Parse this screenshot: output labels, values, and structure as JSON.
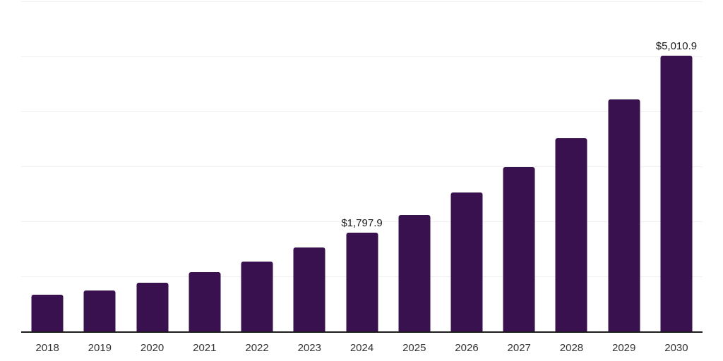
{
  "chart_data": {
    "type": "bar",
    "categories": [
      "2018",
      "2019",
      "2020",
      "2021",
      "2022",
      "2023",
      "2024",
      "2025",
      "2026",
      "2027",
      "2028",
      "2029",
      "2030"
    ],
    "values": [
      665,
      750,
      880,
      1080,
      1265,
      1525,
      1797.9,
      2115,
      2520,
      2985,
      3515,
      4220,
      5010.9
    ],
    "data_labels": [
      "",
      "",
      "",
      "",
      "",
      "",
      "$1,797.9",
      "",
      "",
      "",
      "",
      "",
      "$5,010.9"
    ],
    "ylim": [
      0,
      6000
    ],
    "gridline_step": 1000,
    "grid": true,
    "legend": "none",
    "colors": {
      "bar": "#38114E",
      "gridline": "#EFEFEF",
      "axis_line": "#1C1C1C",
      "tick_label": "#333333",
      "data_label": "#1A1A1A",
      "background": "#FFFFFF"
    }
  }
}
